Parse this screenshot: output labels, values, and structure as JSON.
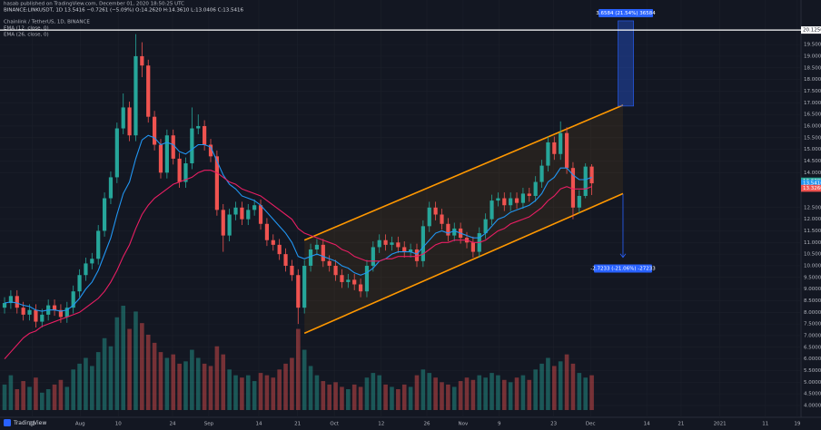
{
  "chart_data": {
    "type": "candlestick",
    "header": [
      "hasab published on TradingView.com, December 01, 2020 18:50:25 UTC",
      "BINANCE:LINKUSDT, 1D  13.5416  −0.7261 (−5.09%)  O:14.2620  H:14.3610  L:13.0406  C:13.5416",
      "Chainlink / TetherUS, 1D, BINANCE"
    ],
    "up_color": "#26a69a",
    "down_color": "#ef5350",
    "candles": [
      [
        8.2,
        8.65,
        7.95,
        8.4
      ],
      [
        8.4,
        8.95,
        8.15,
        8.7
      ],
      [
        8.7,
        8.95,
        7.95,
        8.2
      ],
      [
        8.2,
        8.45,
        7.65,
        7.9
      ],
      [
        7.9,
        8.35,
        7.65,
        8.1
      ],
      [
        8.1,
        8.35,
        7.35,
        7.6
      ],
      [
        7.6,
        8.15,
        7.35,
        7.9
      ],
      [
        7.9,
        8.55,
        7.65,
        8.3
      ],
      [
        8.3,
        8.55,
        7.85,
        8.1
      ],
      [
        8.1,
        8.35,
        7.55,
        7.8
      ],
      [
        7.8,
        8.45,
        7.55,
        8.2
      ],
      [
        8.2,
        9.15,
        7.95,
        8.9
      ],
      [
        8.9,
        9.85,
        8.65,
        9.6
      ],
      [
        9.6,
        10.35,
        9.35,
        10.1
      ],
      [
        10.1,
        10.55,
        9.85,
        10.3
      ],
      [
        10.3,
        11.75,
        10.05,
        11.5
      ],
      [
        11.5,
        13.15,
        11.25,
        12.9
      ],
      [
        12.9,
        14.05,
        12.65,
        13.8
      ],
      [
        13.8,
        16.15,
        13.55,
        15.9
      ],
      [
        15.9,
        17.4,
        15.65,
        16.8
      ],
      [
        16.8,
        17.05,
        15.35,
        15.6
      ],
      [
        15.6,
        19.95,
        15.35,
        19.0
      ],
      [
        19.0,
        19.6,
        18.1,
        18.6
      ],
      [
        18.6,
        18.85,
        16.15,
        16.4
      ],
      [
        16.4,
        16.65,
        14.95,
        15.2
      ],
      [
        15.2,
        15.45,
        13.75,
        14.0
      ],
      [
        14.0,
        15.85,
        13.75,
        15.6
      ],
      [
        15.6,
        15.85,
        14.35,
        14.6
      ],
      [
        14.6,
        14.85,
        13.35,
        13.6
      ],
      [
        13.6,
        14.65,
        13.35,
        14.4
      ],
      [
        14.4,
        16.8,
        14.15,
        15.9
      ],
      [
        15.9,
        16.5,
        15.65,
        16.0
      ],
      [
        16.0,
        16.25,
        14.95,
        15.2
      ],
      [
        15.2,
        15.45,
        14.45,
        14.7
      ],
      [
        14.7,
        14.95,
        12.15,
        12.4
      ],
      [
        12.4,
        12.65,
        10.6,
        11.3
      ],
      [
        11.3,
        12.45,
        11.05,
        12.2
      ],
      [
        12.2,
        12.75,
        11.95,
        12.5
      ],
      [
        12.5,
        12.75,
        11.75,
        12.0
      ],
      [
        12.0,
        12.65,
        11.75,
        12.4
      ],
      [
        12.4,
        12.85,
        12.15,
        12.6
      ],
      [
        12.6,
        12.85,
        11.55,
        11.8
      ],
      [
        11.8,
        12.05,
        10.85,
        11.1
      ],
      [
        11.1,
        11.35,
        10.65,
        10.9
      ],
      [
        10.9,
        11.15,
        10.25,
        10.5
      ],
      [
        10.5,
        10.75,
        9.75,
        10.0
      ],
      [
        10.0,
        10.25,
        9.35,
        9.6
      ],
      [
        9.6,
        9.85,
        7.5,
        8.2
      ],
      [
        8.2,
        10.25,
        7.95,
        10.0
      ],
      [
        10.0,
        10.95,
        9.75,
        10.7
      ],
      [
        10.7,
        11.15,
        10.45,
        10.9
      ],
      [
        10.9,
        11.15,
        9.95,
        10.2
      ],
      [
        10.2,
        10.45,
        9.75,
        10.0
      ],
      [
        10.0,
        10.25,
        9.35,
        9.6
      ],
      [
        9.6,
        9.85,
        9.05,
        9.3
      ],
      [
        9.3,
        9.65,
        9.05,
        9.4
      ],
      [
        9.4,
        9.65,
        8.95,
        9.2
      ],
      [
        9.2,
        9.45,
        8.65,
        8.9
      ],
      [
        8.9,
        10.25,
        8.65,
        10.0
      ],
      [
        10.0,
        11.05,
        9.75,
        10.8
      ],
      [
        10.8,
        11.35,
        10.55,
        11.1
      ],
      [
        11.1,
        11.35,
        10.65,
        10.9
      ],
      [
        10.9,
        11.25,
        10.65,
        11.0
      ],
      [
        11.0,
        11.25,
        10.55,
        10.8
      ],
      [
        10.8,
        11.05,
        10.35,
        10.6
      ],
      [
        10.6,
        10.95,
        10.35,
        10.7
      ],
      [
        10.7,
        10.95,
        9.95,
        10.2
      ],
      [
        10.2,
        11.95,
        9.95,
        11.7
      ],
      [
        11.7,
        12.75,
        11.45,
        12.5
      ],
      [
        12.5,
        12.75,
        11.95,
        12.2
      ],
      [
        12.2,
        12.45,
        11.55,
        11.8
      ],
      [
        11.8,
        12.05,
        11.05,
        11.3
      ],
      [
        11.3,
        11.85,
        11.05,
        11.6
      ],
      [
        11.6,
        11.85,
        10.95,
        11.2
      ],
      [
        11.2,
        11.45,
        10.75,
        11.0
      ],
      [
        11.0,
        11.25,
        10.35,
        10.6
      ],
      [
        10.6,
        11.65,
        10.35,
        11.4
      ],
      [
        11.4,
        12.25,
        11.15,
        12.0
      ],
      [
        12.0,
        13.05,
        11.75,
        12.8
      ],
      [
        12.8,
        13.15,
        12.55,
        12.9
      ],
      [
        12.9,
        13.15,
        12.35,
        12.6
      ],
      [
        12.6,
        13.15,
        12.35,
        12.9
      ],
      [
        12.9,
        13.15,
        12.45,
        12.7
      ],
      [
        12.7,
        13.35,
        12.45,
        13.1
      ],
      [
        13.1,
        13.35,
        12.75,
        13.0
      ],
      [
        13.0,
        13.85,
        12.75,
        13.6
      ],
      [
        13.6,
        14.55,
        13.35,
        14.3
      ],
      [
        14.3,
        15.55,
        14.05,
        15.3
      ],
      [
        15.3,
        15.55,
        14.55,
        14.8
      ],
      [
        14.8,
        16.2,
        14.55,
        15.7
      ],
      [
        15.7,
        15.95,
        13.95,
        14.2
      ],
      [
        14.2,
        14.45,
        12.0,
        12.5
      ],
      [
        12.5,
        13.25,
        12.25,
        13.0
      ],
      [
        13.0,
        14.4,
        12.9,
        14.26
      ],
      [
        14.26,
        14.36,
        13.04,
        13.5416
      ]
    ],
    "volume": [
      22,
      30,
      18,
      25,
      20,
      28,
      15,
      18,
      22,
      26,
      20,
      35,
      40,
      45,
      38,
      50,
      62,
      55,
      80,
      90,
      70,
      85,
      75,
      65,
      58,
      50,
      45,
      48,
      40,
      42,
      52,
      45,
      40,
      38,
      55,
      48,
      35,
      30,
      28,
      30,
      25,
      32,
      30,
      28,
      35,
      40,
      45,
      70,
      52,
      38,
      30,
      25,
      22,
      24,
      20,
      18,
      22,
      20,
      28,
      32,
      30,
      22,
      20,
      18,
      22,
      20,
      30,
      35,
      32,
      28,
      24,
      22,
      20,
      25,
      28,
      26,
      30,
      28,
      32,
      30,
      26,
      24,
      28,
      30,
      26,
      35,
      40,
      45,
      38,
      42,
      48,
      40,
      32,
      28,
      30
    ],
    "series": [
      {
        "name": "EMA (12, close, 0)",
        "color": "#2196f3",
        "values": [
          8.4,
          8.45,
          8.4,
          8.3,
          8.25,
          8.1,
          8.05,
          8.1,
          8.1,
          8.05,
          8.1,
          8.3,
          8.6,
          9.0,
          9.3,
          9.8,
          10.5,
          11.2,
          12.2,
          13.1,
          13.6,
          14.6,
          15.4,
          15.6,
          15.5,
          15.2,
          15.3,
          15.2,
          14.9,
          14.8,
          15.0,
          15.2,
          15.2,
          15.1,
          14.5,
          13.9,
          13.5,
          13.3,
          13.0,
          12.9,
          12.8,
          12.6,
          12.3,
          12.0,
          11.7,
          11.4,
          11.0,
          10.4,
          10.3,
          10.4,
          10.5,
          10.4,
          10.3,
          10.2,
          10.0,
          9.9,
          9.7,
          9.6,
          9.7,
          9.9,
          10.2,
          10.3,
          10.5,
          10.6,
          10.6,
          10.6,
          10.5,
          10.8,
          11.1,
          11.4,
          11.5,
          11.4,
          11.5,
          11.4,
          11.3,
          11.2,
          11.2,
          11.4,
          11.7,
          12.0,
          12.1,
          12.3,
          12.4,
          12.5,
          12.6,
          12.8,
          13.1,
          13.6,
          13.8,
          14.2,
          14.2,
          13.9,
          13.7,
          13.7,
          13.8
        ]
      },
      {
        "name": "EMA (26, close, 0)",
        "color": "#e91e63",
        "values": [
          6.0,
          6.3,
          6.6,
          6.9,
          7.1,
          7.2,
          7.4,
          7.5,
          7.6,
          7.7,
          7.8,
          7.9,
          8.0,
          8.2,
          8.4,
          8.6,
          8.9,
          9.3,
          9.8,
          10.4,
          10.9,
          11.6,
          12.2,
          12.6,
          12.9,
          13.1,
          13.3,
          13.5,
          13.6,
          13.7,
          13.8,
          14.0,
          14.1,
          14.1,
          14.0,
          13.8,
          13.6,
          13.5,
          13.3,
          13.2,
          13.1,
          13.0,
          12.8,
          12.6,
          12.4,
          12.2,
          12.0,
          11.6,
          11.4,
          11.3,
          11.2,
          11.1,
          11.0,
          10.9,
          10.7,
          10.6,
          10.4,
          10.3,
          10.2,
          10.2,
          10.2,
          10.3,
          10.3,
          10.4,
          10.4,
          10.4,
          10.4,
          10.5,
          10.7,
          10.9,
          11.0,
          11.0,
          11.1,
          11.1,
          11.1,
          11.0,
          11.0,
          11.1,
          11.3,
          11.5,
          11.6,
          11.8,
          11.9,
          12.0,
          12.1,
          12.3,
          12.5,
          12.8,
          13.0,
          13.3,
          13.4,
          13.3,
          13.3,
          13.3,
          13.4
        ]
      }
    ],
    "channel": {
      "color": "#ff9800",
      "upper": [
        [
          48,
          11.1
        ],
        [
          99,
          16.9
        ]
      ],
      "lower": [
        [
          48,
          7.1
        ],
        [
          99,
          13.1
        ]
      ]
    },
    "measure_up": {
      "x": [
        98.2,
        100.7
      ],
      "from": 16.86,
      "to": 20.52,
      "label": "3.6584 (21.54%) 36584"
    },
    "measure_down": {
      "x": 99,
      "from": 13.08,
      "to": 10.36,
      "label_at": 9.88,
      "label": "-2.7233 (-21.06%) -27233"
    },
    "level": {
      "value": 20.125,
      "label": "20.1250"
    },
    "price_labels": [
      {
        "value": 13.6399,
        "label": "13.6399",
        "color": "#26a69a"
      },
      {
        "value": 13.5416,
        "label": "13.5416",
        "color": "#2196f3"
      },
      {
        "value": 13.326,
        "label": "13.3260",
        "color": "#ef5350"
      }
    ],
    "xlim": [
      -0.73,
      127.5
    ],
    "xticks": [
      {
        "value": 4.4,
        "label": "21"
      },
      {
        "value": 12.1,
        "label": "Aug"
      },
      {
        "value": 18.2,
        "label": "10"
      },
      {
        "value": 26.9,
        "label": "24"
      },
      {
        "value": 32.7,
        "label": "Sep"
      },
      {
        "value": 40.7,
        "label": "14"
      },
      {
        "value": 46.9,
        "label": "21"
      },
      {
        "value": 52.8,
        "label": "Oct"
      },
      {
        "value": 60.3,
        "label": "12"
      },
      {
        "value": 67.6,
        "label": "26"
      },
      {
        "value": 73.4,
        "label": "Nov"
      },
      {
        "value": 79.2,
        "label": "9"
      },
      {
        "value": 87.9,
        "label": "23"
      },
      {
        "value": 93.8,
        "label": "Dec"
      },
      {
        "value": 102.8,
        "label": "14"
      },
      {
        "value": 108.3,
        "label": "21"
      },
      {
        "value": 114.5,
        "label": "2021"
      },
      {
        "value": 121.8,
        "label": "11"
      },
      {
        "value": 126.9,
        "label": "19"
      }
    ],
    "ylim": [
      3.57,
      20.83
    ],
    "yticks": [
      {
        "value": 4,
        "label": "4.0000"
      },
      {
        "value": 4.5,
        "label": "4.5000"
      },
      {
        "value": 5,
        "label": "5.0000"
      },
      {
        "value": 5.5,
        "label": "5.5000"
      },
      {
        "value": 6,
        "label": "6.0000"
      },
      {
        "value": 6.5,
        "label": "6.5000"
      },
      {
        "value": 7,
        "label": "7.0000"
      },
      {
        "value": 7.5,
        "label": "7.5000"
      },
      {
        "value": 8,
        "label": "8.0000"
      },
      {
        "value": 8.5,
        "label": "8.5000"
      },
      {
        "value": 9,
        "label": "9.0000"
      },
      {
        "value": 9.5,
        "label": "9.5000"
      },
      {
        "value": 10,
        "label": "10.0000"
      },
      {
        "value": 10.5,
        "label": "10.5000"
      },
      {
        "value": 11,
        "label": "11.0000"
      },
      {
        "value": 11.5,
        "label": "11.5000"
      },
      {
        "value": 12,
        "label": "12.0000"
      },
      {
        "value": 12.5,
        "label": "12.5000"
      },
      {
        "value": 14,
        "label": "14.0000"
      },
      {
        "value": 14.5,
        "label": "14.5000"
      },
      {
        "value": 15,
        "label": "15.0000"
      },
      {
        "value": 15.5,
        "label": "15.5000"
      },
      {
        "value": 16,
        "label": "16.0000"
      },
      {
        "value": 16.5,
        "label": "16.5000"
      },
      {
        "value": 17,
        "label": "17.0000"
      },
      {
        "value": 17.5,
        "label": "17.5000"
      },
      {
        "value": 18,
        "label": "18.0000"
      },
      {
        "value": 18.5,
        "label": "18.5000"
      },
      {
        "value": 19,
        "label": "19.0000"
      },
      {
        "value": 19.5,
        "label": "19.5000"
      }
    ],
    "grid": true,
    "brand": "TradingView"
  }
}
